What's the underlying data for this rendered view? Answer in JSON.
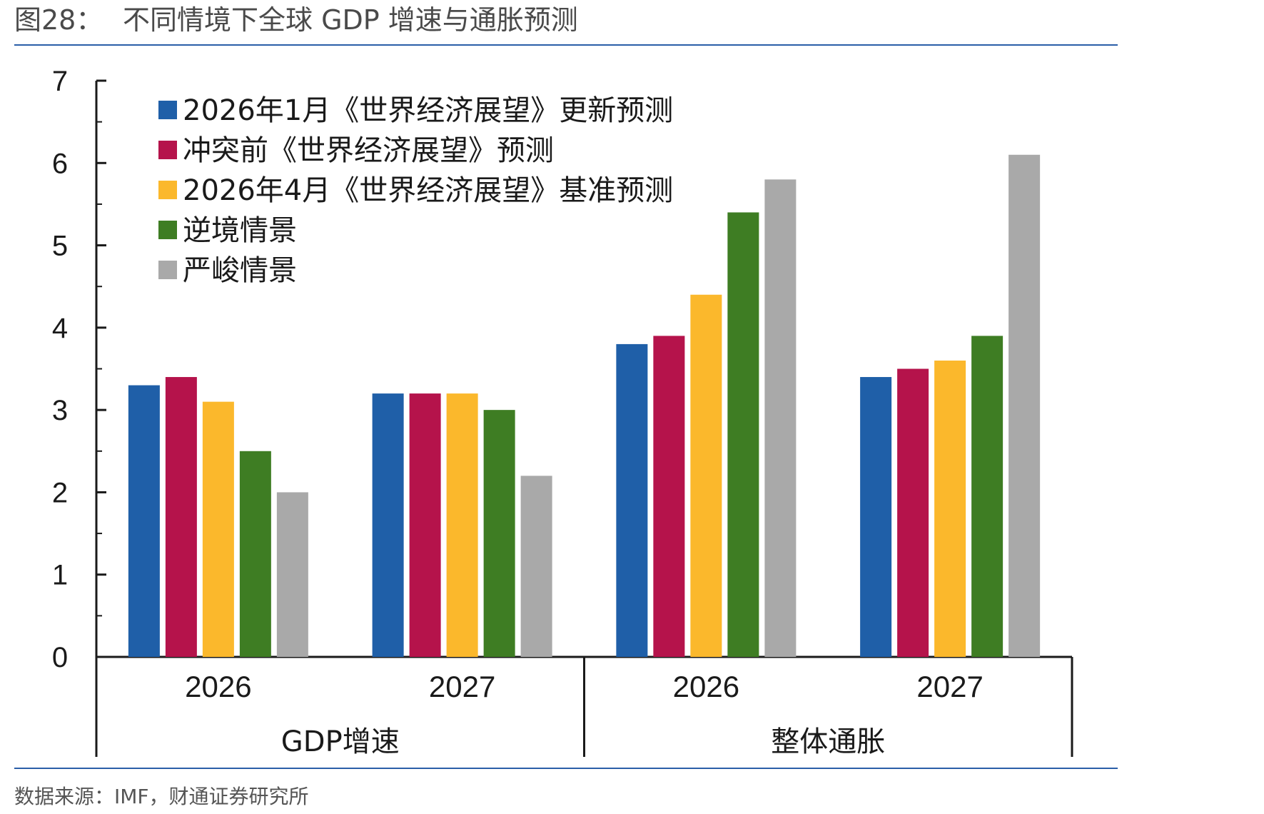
{
  "figure": {
    "number": "图28：",
    "title": "不同情境下全球 GDP 增速与通胀预测",
    "source": "数据来源：IMF，财通证券研究所"
  },
  "chart_data": {
    "type": "bar",
    "y_ticks": [
      "0",
      "1",
      "2",
      "3",
      "4",
      "5",
      "6",
      "7"
    ],
    "ylim": [
      0,
      7
    ],
    "grid": false,
    "legend_position": "top-left",
    "groups": [
      {
        "label": "GDP增速",
        "categories": [
          "2026",
          "2027"
        ]
      },
      {
        "label": "整体通胀",
        "categories": [
          "2026",
          "2027"
        ]
      }
    ],
    "categories": [
      "2026",
      "2027",
      "2026",
      "2027"
    ],
    "series": [
      {
        "name": "2026年1月《世界经济展望》更新预测",
        "color": "#1f5fa8",
        "values": [
          3.3,
          3.2,
          3.8,
          3.4
        ]
      },
      {
        "name": "冲突前《世界经济展望》预测",
        "color": "#b5134b",
        "values": [
          3.4,
          3.2,
          3.9,
          3.5
        ]
      },
      {
        "name": "2026年4月《世界经济展望》基准预测",
        "color": "#fbb82c",
        "values": [
          3.1,
          3.2,
          4.4,
          3.6
        ]
      },
      {
        "name": "逆境情景",
        "color": "#3e7d23",
        "values": [
          2.5,
          3.0,
          5.4,
          3.9
        ]
      },
      {
        "name": "严峻情景",
        "color": "#a9a9a9",
        "values": [
          2.0,
          2.2,
          5.8,
          6.1
        ]
      }
    ]
  }
}
